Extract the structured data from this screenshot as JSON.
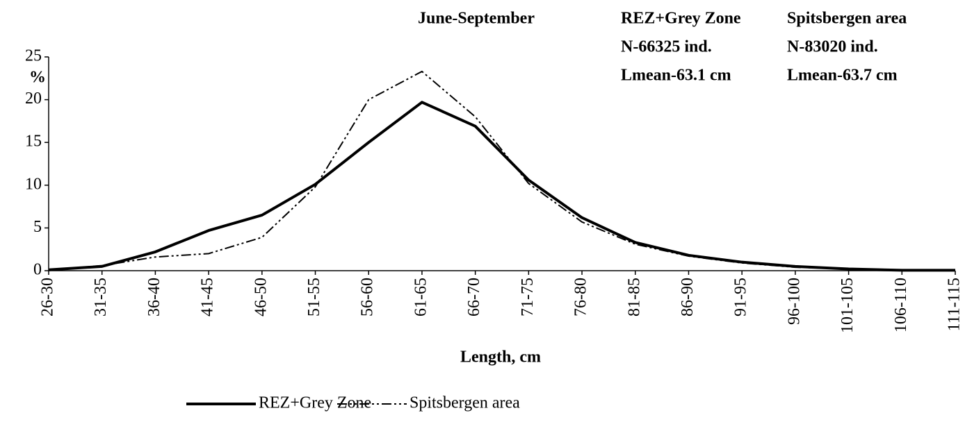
{
  "chart_data": {
    "type": "line",
    "title": "June-September",
    "annotations": [
      [
        "REZ+Grey Zone",
        "N-66325 ind.",
        "Lmean-63.1 cm"
      ],
      [
        "Spitsbergen area",
        "N-83020 ind.",
        "Lmean-63.7 cm"
      ]
    ],
    "y_label": "%",
    "x_label": "Length, cm",
    "categories": [
      "26-30",
      "31-35",
      "36-40",
      "41-45",
      "46-50",
      "51-55",
      "56-60",
      "61-65",
      "66-70",
      "71-75",
      "76-80",
      "81-85",
      "86-90",
      "91-95",
      "96-100",
      "101-105",
      "106-110",
      "111-115"
    ],
    "series": [
      {
        "name": "REZ+Grey Zone",
        "color": "#000000",
        "line_style": "solid",
        "values": [
          0.1,
          0.5,
          2.2,
          4.7,
          6.5,
          10.1,
          15.0,
          19.7,
          16.9,
          10.6,
          6.2,
          3.3,
          1.8,
          1.0,
          0.5,
          0.2,
          0.05,
          0.05
        ]
      },
      {
        "name": "Spitsbergen area",
        "color": "#000000",
        "line_style": "dashdotdot",
        "values": [
          0.1,
          0.6,
          1.6,
          2.0,
          3.9,
          9.8,
          20.0,
          23.3,
          18.0,
          10.2,
          5.7,
          3.1,
          1.7,
          0.9,
          0.4,
          0.2,
          0.1,
          0.1
        ]
      }
    ],
    "ylim": [
      0,
      25
    ],
    "yticks": [
      0,
      5,
      10,
      15,
      20,
      25
    ],
    "grid": false,
    "legend": "bottom"
  }
}
